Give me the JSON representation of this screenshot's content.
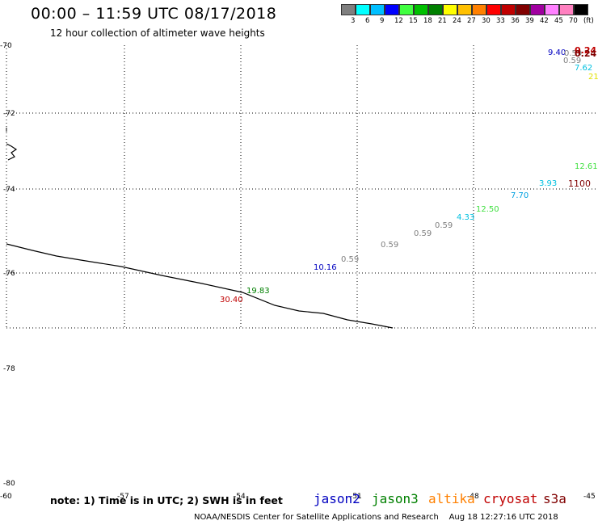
{
  "header": {
    "title": "00:00 – 11:59 UTC 08/17/2018",
    "subtitle": "12 hour collection of altimeter wave heights"
  },
  "colorbar": {
    "colors": [
      "#7f7f7f",
      "#00ffff",
      "#00bfff",
      "#0000ff",
      "#40ff40",
      "#00c000",
      "#008000",
      "#ffff00",
      "#ffc000",
      "#ff8000",
      "#ff0000",
      "#c00000",
      "#800000",
      "#a000a0",
      "#ff80ff",
      "#ff80c0",
      "#000000"
    ],
    "labels": [
      "3",
      "6",
      "9",
      "12",
      "15",
      "18",
      "21",
      "24",
      "27",
      "30",
      "33",
      "36",
      "39",
      "42",
      "45",
      "70",
      "(ft)"
    ]
  },
  "map": {
    "lat_labels": [
      "-70",
      "-72",
      "-74",
      "-76",
      "-78",
      "-80"
    ],
    "lon_labels": [
      "-60",
      "-57",
      "-54",
      "-51",
      "-48",
      "-45"
    ],
    "wave_labels": [
      {
        "text": "9.40",
        "color": "#0000c0"
      },
      {
        "text": "0.59",
        "color": "#808080"
      },
      {
        "text": "0.24",
        "color": "#c00000"
      },
      {
        "text": "0.24",
        "color": "#800000"
      },
      {
        "text": "0.59",
        "color": "#808080"
      },
      {
        "text": "7.62",
        "color": "#00c0e0"
      },
      {
        "text": "21",
        "color": "#e0e000"
      },
      {
        "text": "12.61",
        "color": "#40e040"
      },
      {
        "text": "1100",
        "color": "#800000"
      },
      {
        "text": "3.93",
        "color": "#00c0e0"
      },
      {
        "text": "7.70",
        "color": "#00a0e0"
      },
      {
        "text": "12.50",
        "color": "#40e040"
      },
      {
        "text": "4.33",
        "color": "#00c0e0"
      },
      {
        "text": "0.59",
        "color": "#808080"
      },
      {
        "text": "0.59",
        "color": "#808080"
      },
      {
        "text": "0.59",
        "color": "#808080"
      },
      {
        "text": "0.59",
        "color": "#808080"
      },
      {
        "text": "10.16",
        "color": "#0000c0"
      },
      {
        "text": "19.83",
        "color": "#008000"
      },
      {
        "text": "30.40",
        "color": "#c00000"
      }
    ]
  },
  "footer": {
    "note": "note: 1) Time is in UTC; 2) SWH is in feet",
    "missions": [
      {
        "name": "jason2",
        "color": "#0000c0"
      },
      {
        "name": "jason3",
        "color": "#008000"
      },
      {
        "name": "altika",
        "color": "#ff8000"
      },
      {
        "name": "cryosat",
        "color": "#c00000"
      },
      {
        "name": "s3a",
        "color": "#800000"
      }
    ],
    "credit": "NOAA/NESDIS Center for Satellite Applications and Research",
    "timestamp": "Aug 18 12:27:16 UTC 2018"
  }
}
